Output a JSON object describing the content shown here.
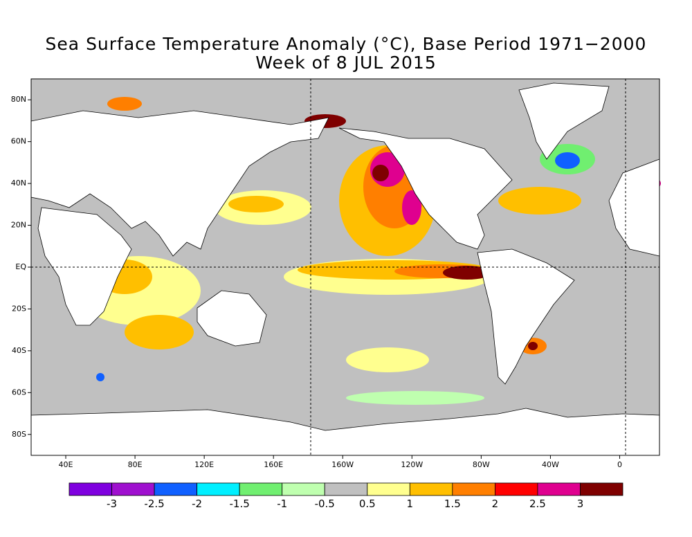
{
  "chart_data": {
    "type": "map",
    "title": "Sea Surface Temperature Anomaly (°C), Base Period 1971−2000",
    "subtitle": "Week of  8 JUL 2015",
    "xlim": [
      20,
      383
    ],
    "ylim": [
      -90,
      90
    ],
    "xticks": [
      {
        "value": 40,
        "label": "40E"
      },
      {
        "value": 80,
        "label": "80E"
      },
      {
        "value": 120,
        "label": "120E"
      },
      {
        "value": 160,
        "label": "160E"
      },
      {
        "value": 200,
        "label": "160W"
      },
      {
        "value": 240,
        "label": "120W"
      },
      {
        "value": 280,
        "label": "80W"
      },
      {
        "value": 320,
        "label": "40W"
      },
      {
        "value": 360,
        "label": "0"
      }
    ],
    "yticks": [
      {
        "value": 80,
        "label": "80N"
      },
      {
        "value": 60,
        "label": "60N"
      },
      {
        "value": 40,
        "label": "40N"
      },
      {
        "value": 20,
        "label": "20N"
      },
      {
        "value": 0,
        "label": "EQ"
      },
      {
        "value": -20,
        "label": "20S"
      },
      {
        "value": -40,
        "label": "40S"
      },
      {
        "value": -60,
        "label": "60S"
      },
      {
        "value": -80,
        "label": "80S"
      }
    ],
    "colorbar": {
      "colors": [
        "#7f00df",
        "#9f10cf",
        "#1060ff",
        "#00efff",
        "#70ef70",
        "#bfffaf",
        "#c0c0c0",
        "#ffff8f",
        "#ffbf00",
        "#ff7f00",
        "#ff0000",
        "#df008f",
        "#7f0000"
      ],
      "boundaries": [
        -3,
        -2.5,
        -2,
        -1.5,
        -1,
        -0.5,
        0.5,
        1,
        1.5,
        2,
        2.5,
        3
      ]
    }
  }
}
